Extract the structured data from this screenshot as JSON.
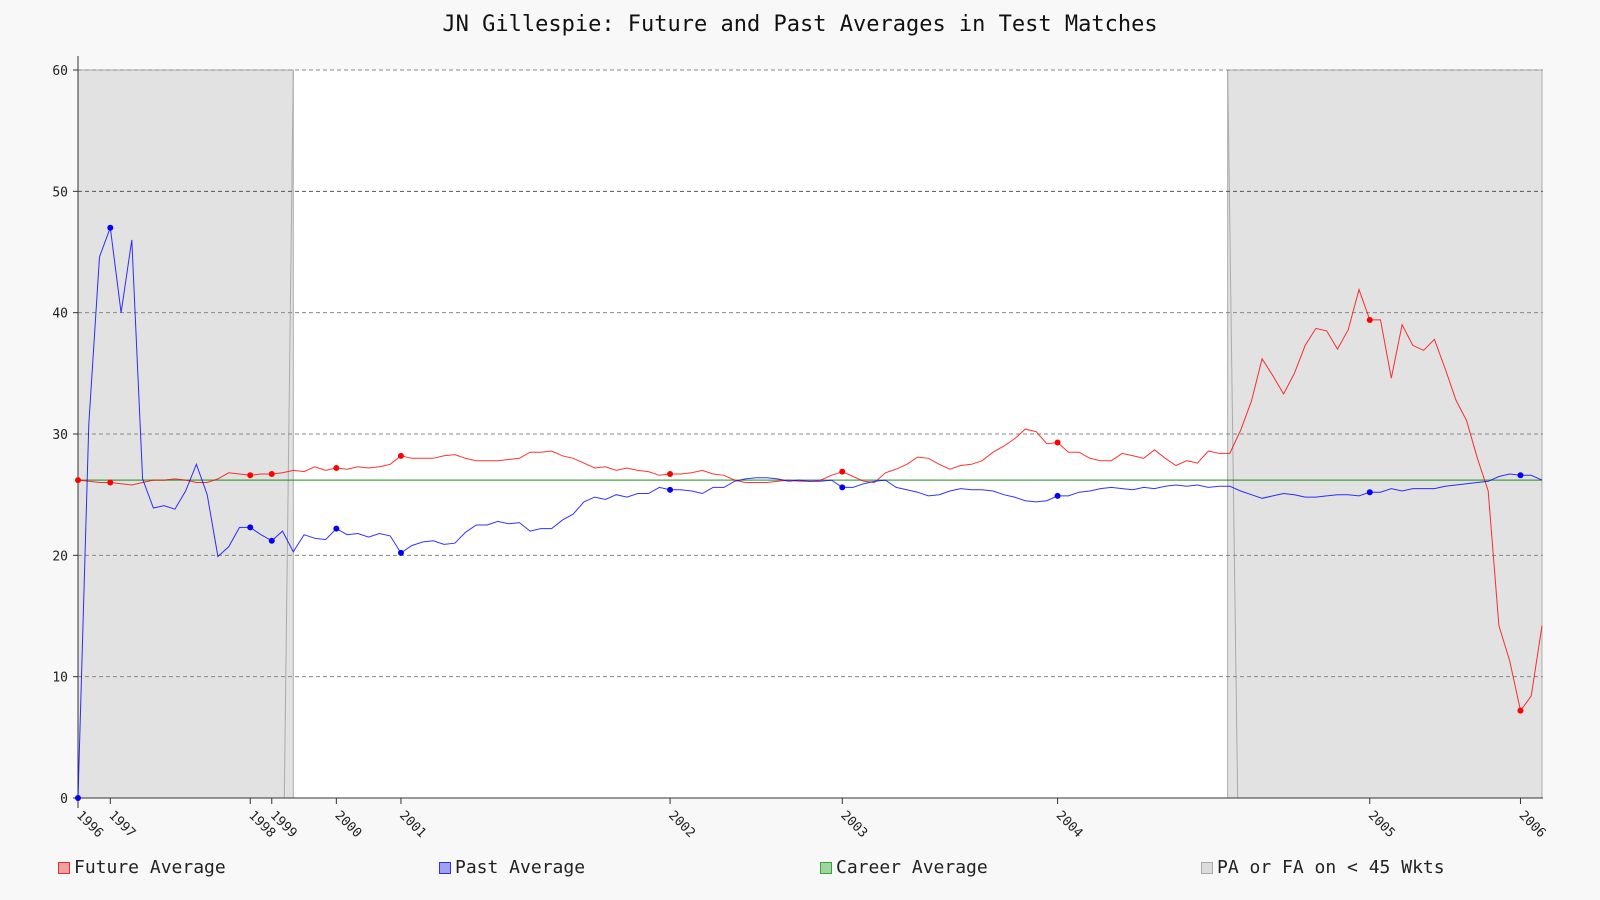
{
  "chart_data": {
    "type": "line",
    "title": "JN Gillespie: Future and Past Averages in Test Matches",
    "xlabel": "",
    "ylabel": "",
    "ylim": [
      0,
      60
    ],
    "yticks": [
      0,
      10,
      20,
      30,
      40,
      50,
      60
    ],
    "x_tick_labels": [
      "1996",
      "1997",
      "1998",
      "1999",
      "2000",
      "2001",
      "2002",
      "2003",
      "2004",
      "2005",
      "2006"
    ],
    "x_tick_matches": [
      0,
      3,
      16,
      18,
      24,
      30,
      55,
      71,
      91,
      120,
      134
    ],
    "n_matches": 137,
    "grid": true,
    "legend_position": "bottom",
    "colors": {
      "future": "#ff0000",
      "past": "#0000ff",
      "career": "#008000",
      "shade": "#c8c8c8"
    },
    "series": [
      {
        "name": "Future Average",
        "key": "future",
        "values": [
          26.2,
          26.1,
          26.0,
          26.0,
          25.9,
          25.8,
          26.0,
          26.2,
          26.2,
          26.3,
          26.2,
          26.0,
          26.0,
          26.3,
          26.8,
          26.7,
          26.6,
          26.7,
          26.7,
          26.8,
          27.0,
          26.9,
          27.3,
          27.0,
          27.2,
          27.1,
          27.3,
          27.2,
          27.3,
          27.5,
          28.2,
          28.0,
          28.0,
          28.0,
          28.2,
          28.3,
          28.0,
          27.8,
          27.8,
          27.8,
          27.9,
          28.0,
          28.5,
          28.5,
          28.6,
          28.2,
          28.0,
          27.6,
          27.2,
          27.3,
          27.0,
          27.2,
          27.0,
          26.9,
          26.6,
          26.7,
          26.7,
          26.8,
          27.0,
          26.7,
          26.6,
          26.2,
          26.0,
          26.0,
          26.0,
          26.1,
          26.2,
          26.1,
          26.1,
          26.2,
          26.6,
          26.9,
          26.5,
          26.1,
          26.0,
          26.8,
          27.1,
          27.5,
          28.1,
          28.0,
          27.5,
          27.1,
          27.4,
          27.5,
          27.8,
          28.5,
          29.0,
          29.6,
          30.4,
          30.2,
          29.2,
          29.3,
          28.5,
          28.5,
          28.0,
          27.8,
          27.8,
          28.4,
          28.2,
          28.0,
          28.7,
          28.0,
          27.4,
          27.8,
          27.6,
          28.6,
          28.4,
          28.4,
          30.3,
          32.7,
          36.2,
          34.8,
          33.3,
          35.0,
          37.3,
          38.7,
          38.5,
          37.0,
          38.6,
          41.9,
          39.4,
          39.4,
          34.6,
          39.0,
          37.3,
          36.9,
          37.8,
          35.4,
          32.8,
          31.1,
          28.0,
          25.3,
          14.2,
          11.3,
          7.2,
          8.4,
          14.2
        ]
      },
      {
        "name": "Past Average",
        "key": "past",
        "values": [
          0.0,
          30.8,
          44.6,
          47.0,
          40.0,
          46.0,
          26.3,
          23.9,
          24.1,
          23.8,
          25.3,
          27.5,
          25.0,
          19.9,
          20.7,
          22.3,
          22.3,
          21.7,
          21.2,
          22.0,
          20.3,
          21.7,
          21.4,
          21.3,
          22.2,
          21.7,
          21.8,
          21.5,
          21.8,
          21.6,
          20.2,
          20.8,
          21.1,
          21.2,
          20.9,
          21.0,
          21.9,
          22.5,
          22.5,
          22.8,
          22.6,
          22.7,
          22.0,
          22.2,
          22.2,
          22.9,
          23.4,
          24.4,
          24.8,
          24.6,
          25.0,
          24.8,
          25.1,
          25.1,
          25.6,
          25.4,
          25.4,
          25.3,
          25.1,
          25.6,
          25.6,
          26.1,
          26.3,
          26.4,
          26.4,
          26.3,
          26.1,
          26.2,
          26.1,
          26.1,
          26.2,
          25.6,
          25.6,
          25.9,
          26.1,
          26.2,
          25.6,
          25.4,
          25.2,
          24.9,
          25.0,
          25.3,
          25.5,
          25.4,
          25.4,
          25.3,
          25.0,
          24.8,
          24.5,
          24.4,
          24.5,
          24.9,
          24.9,
          25.2,
          25.3,
          25.5,
          25.6,
          25.5,
          25.4,
          25.6,
          25.5,
          25.7,
          25.8,
          25.7,
          25.8,
          25.6,
          25.7,
          25.7,
          25.3,
          25.0,
          24.7,
          24.9,
          25.1,
          25.0,
          24.8,
          24.8,
          24.9,
          25.0,
          25.0,
          24.9,
          25.2,
          25.2,
          25.5,
          25.3,
          25.5,
          25.5,
          25.5,
          25.7,
          25.8,
          25.9,
          26.0,
          26.1,
          26.5,
          26.7,
          26.6,
          26.6,
          26.2
        ]
      },
      {
        "name": "Career Average",
        "key": "career",
        "values": [
          26.2,
          26.2
        ]
      }
    ],
    "shade_legend": "PA or FA on < 45 Wkts",
    "shaded_regions": [
      {
        "from": 0,
        "to": 20.0,
        "top_from": 60,
        "top_to": 60
      },
      {
        "from": 106.8,
        "to": 136,
        "top_from": 60,
        "top_to": 60
      }
    ],
    "highlight_points": {
      "future": [
        0,
        3,
        16,
        18,
        24,
        30,
        55,
        71,
        91,
        120,
        134
      ],
      "past": [
        0,
        3,
        16,
        18,
        24,
        30,
        55,
        71,
        91,
        120,
        134
      ]
    }
  }
}
